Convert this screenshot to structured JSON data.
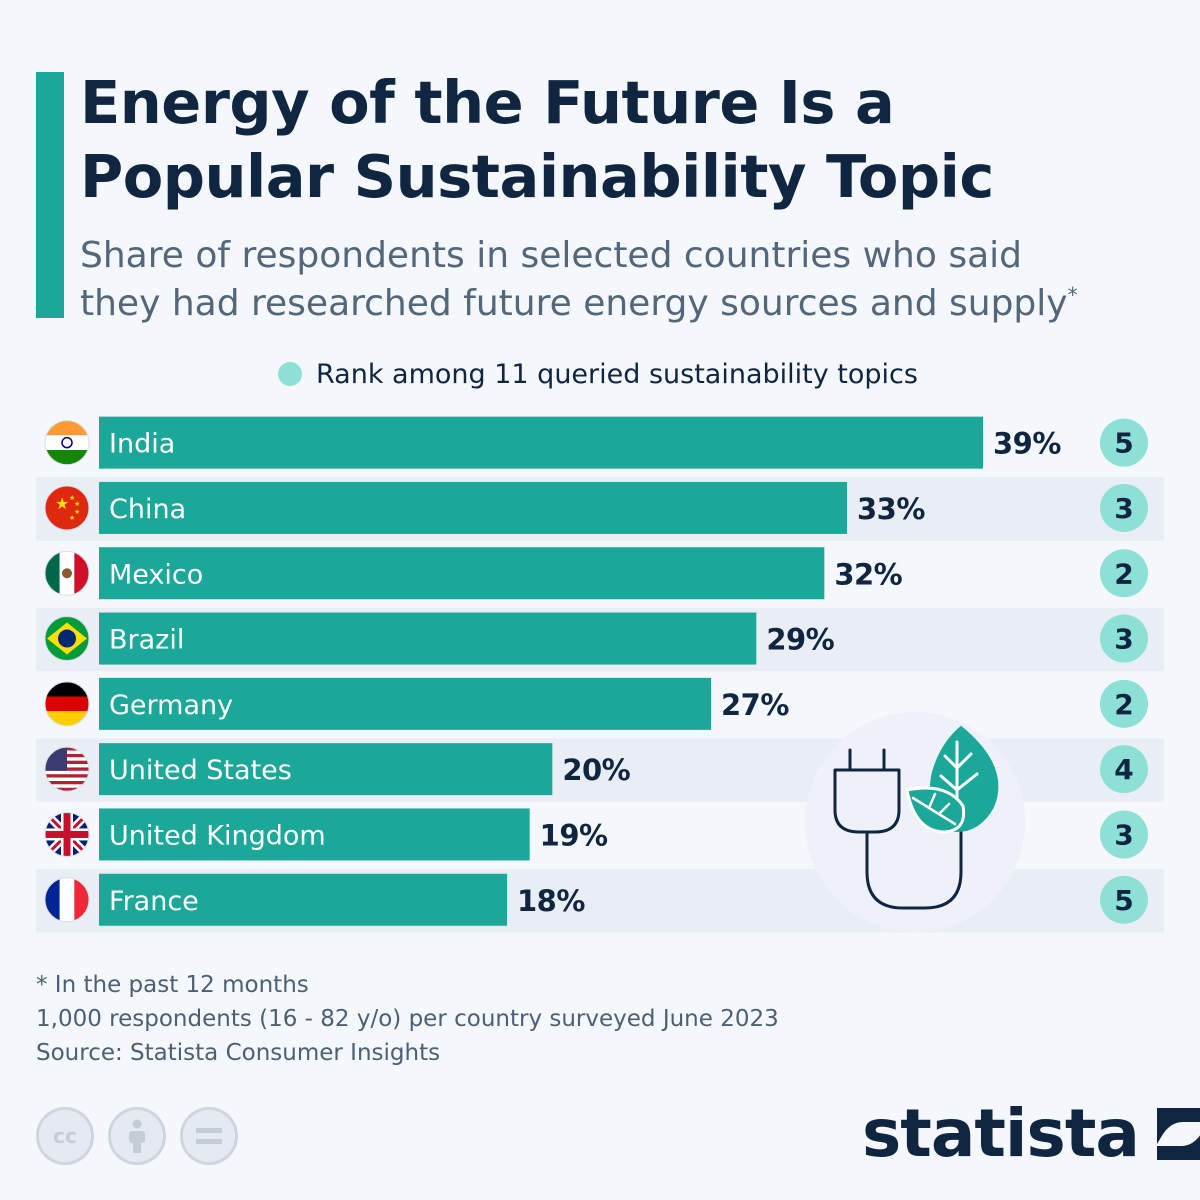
{
  "header": {
    "title_line1": "Energy of the Future Is a",
    "title_line2": "Popular Sustainability Topic",
    "subtitle_line1": "Share of respondents in selected countries who said",
    "subtitle_line2": "they had researched future energy sources and supply",
    "subtitle_mark": "*"
  },
  "legend": {
    "label": "Rank among 11 queried sustainability topics"
  },
  "colors": {
    "bar": "#1ba899",
    "rank_circle": "#8de0d6",
    "text": "#0f2540",
    "row_band": "#e9eef5"
  },
  "chart_data": {
    "type": "bar",
    "orientation": "horizontal",
    "categories": [
      "India",
      "China",
      "Mexico",
      "Brazil",
      "Germany",
      "United States",
      "United Kingdom",
      "France"
    ],
    "values": [
      39,
      33,
      32,
      29,
      27,
      20,
      19,
      18
    ],
    "value_labels": [
      "39%",
      "33%",
      "32%",
      "29%",
      "27%",
      "20%",
      "19%",
      "18%"
    ],
    "ranks": [
      5,
      3,
      2,
      3,
      2,
      4,
      3,
      5
    ],
    "flags": [
      "india-flag",
      "china-flag",
      "mexico-flag",
      "brazil-flag",
      "germany-flag",
      "united-states-flag",
      "united-kingdom-flag",
      "france-flag"
    ],
    "unit": "%",
    "xlim": [
      0,
      39
    ],
    "decoration": "plug-leaf-icon"
  },
  "footer": {
    "note": "* In the past 12 months",
    "survey": "1,000 respondents (16 - 82 y/o) per country surveyed June 2023",
    "source": "Source: Statista Consumer Insights"
  },
  "license_icons": [
    "cc-icon",
    "attribution-icon",
    "no-derivatives-icon"
  ],
  "brand": {
    "name": "statista",
    "logo": "statista-logo-icon"
  }
}
